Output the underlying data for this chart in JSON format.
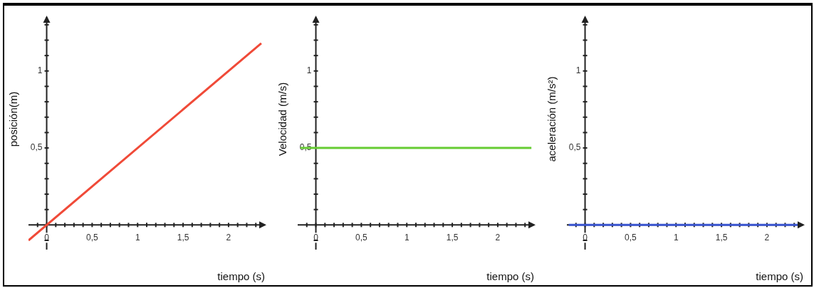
{
  "chart_data": [
    {
      "type": "line",
      "xlabel": "tiempo (s)",
      "ylabel": "posición(m)",
      "xlim": [
        -0.2,
        2.4
      ],
      "ylim": [
        -0.16,
        1.35
      ],
      "xticks": [
        {
          "value": -0.1,
          "label": null
        },
        0,
        {
          "value": 0.1,
          "label": null
        },
        {
          "value": 0.2,
          "label": null
        },
        {
          "value": 0.3,
          "label": null
        },
        {
          "value": 0.4,
          "label": null
        },
        {
          "value": 0.5,
          "label": "0,5"
        },
        {
          "value": 0.6,
          "label": null
        },
        {
          "value": 0.7,
          "label": null
        },
        {
          "value": 0.8,
          "label": null
        },
        {
          "value": 0.9,
          "label": null
        },
        1,
        {
          "value": 1.1,
          "label": null
        },
        {
          "value": 1.2,
          "label": null
        },
        {
          "value": 1.3,
          "label": null
        },
        {
          "value": 1.4,
          "label": null
        },
        {
          "value": 1.5,
          "label": "1,5"
        },
        {
          "value": 1.6,
          "label": null
        },
        {
          "value": 1.7,
          "label": null
        },
        {
          "value": 1.8,
          "label": null
        },
        {
          "value": 1.9,
          "label": null
        },
        2,
        {
          "value": 2.1,
          "label": null
        },
        {
          "value": 2.2,
          "label": null
        },
        {
          "value": 2.3,
          "label": null
        }
      ],
      "yticks": [
        {
          "value": -0.1,
          "label": null
        },
        {
          "value": 0.1,
          "label": null
        },
        {
          "value": 0.2,
          "label": null
        },
        {
          "value": 0.3,
          "label": null
        },
        {
          "value": 0.4,
          "label": null
        },
        {
          "value": 0.5,
          "label": "0,5"
        },
        {
          "value": 0.6,
          "label": null
        },
        {
          "value": 0.7,
          "label": null
        },
        {
          "value": 0.8,
          "label": null
        },
        {
          "value": 0.9,
          "label": null
        },
        {
          "value": 1,
          "label": "1"
        },
        {
          "value": 1.1,
          "label": null
        },
        {
          "value": 1.2,
          "label": null
        },
        {
          "value": 1.3,
          "label": null
        }
      ],
      "marker": "none",
      "x": [
        -0.2,
        2.36
      ],
      "series": [
        {
          "color": "#f04a38",
          "values": [
            -0.1,
            1.18
          ]
        }
      ]
    },
    {
      "type": "line",
      "xlabel": "tiempo (s)",
      "ylabel": "Velocidad (m/s)",
      "xlim": [
        -0.2,
        2.4
      ],
      "ylim": [
        -0.16,
        1.35
      ],
      "xticks": [
        {
          "value": -0.1,
          "label": null
        },
        0,
        {
          "value": 0.1,
          "label": null
        },
        {
          "value": 0.2,
          "label": null
        },
        {
          "value": 0.3,
          "label": null
        },
        {
          "value": 0.4,
          "label": null
        },
        {
          "value": 0.5,
          "label": "0,5"
        },
        {
          "value": 0.6,
          "label": null
        },
        {
          "value": 0.7,
          "label": null
        },
        {
          "value": 0.8,
          "label": null
        },
        {
          "value": 0.9,
          "label": null
        },
        1,
        {
          "value": 1.1,
          "label": null
        },
        {
          "value": 1.2,
          "label": null
        },
        {
          "value": 1.3,
          "label": null
        },
        {
          "value": 1.4,
          "label": null
        },
        {
          "value": 1.5,
          "label": "1,5"
        },
        {
          "value": 1.6,
          "label": null
        },
        {
          "value": 1.7,
          "label": null
        },
        {
          "value": 1.8,
          "label": null
        },
        {
          "value": 1.9,
          "label": null
        },
        2,
        {
          "value": 2.1,
          "label": null
        },
        {
          "value": 2.2,
          "label": null
        },
        {
          "value": 2.3,
          "label": null
        }
      ],
      "yticks": [
        {
          "value": -0.1,
          "label": null
        },
        {
          "value": 0.1,
          "label": null
        },
        {
          "value": 0.2,
          "label": null
        },
        {
          "value": 0.3,
          "label": null
        },
        {
          "value": 0.4,
          "label": null
        },
        {
          "value": 0.5,
          "label": "0,5"
        },
        {
          "value": 0.6,
          "label": null
        },
        {
          "value": 0.7,
          "label": null
        },
        {
          "value": 0.8,
          "label": null
        },
        {
          "value": 0.9,
          "label": null
        },
        {
          "value": 1,
          "label": "1"
        },
        {
          "value": 1.1,
          "label": null
        },
        {
          "value": 1.2,
          "label": null
        },
        {
          "value": 1.3,
          "label": null
        }
      ],
      "marker": "none",
      "x": [
        -0.17,
        2.37
      ],
      "series": [
        {
          "color": "#66cc33",
          "values": [
            0.5,
            0.5
          ]
        }
      ]
    },
    {
      "type": "line",
      "xlabel": "tiempo (s)",
      "ylabel": "aceleración (m/s²)",
      "xlim": [
        -0.2,
        2.4
      ],
      "ylim": [
        -0.16,
        1.35
      ],
      "xticks": [
        {
          "value": -0.1,
          "label": null
        },
        0,
        {
          "value": 0.1,
          "label": null
        },
        {
          "value": 0.2,
          "label": null
        },
        {
          "value": 0.3,
          "label": null
        },
        {
          "value": 0.4,
          "label": null
        },
        {
          "value": 0.5,
          "label": "0,5"
        },
        {
          "value": 0.6,
          "label": null
        },
        {
          "value": 0.7,
          "label": null
        },
        {
          "value": 0.8,
          "label": null
        },
        {
          "value": 0.9,
          "label": null
        },
        1,
        {
          "value": 1.1,
          "label": null
        },
        {
          "value": 1.2,
          "label": null
        },
        {
          "value": 1.3,
          "label": null
        },
        {
          "value": 1.4,
          "label": null
        },
        {
          "value": 1.5,
          "label": "1,5"
        },
        {
          "value": 1.6,
          "label": null
        },
        {
          "value": 1.7,
          "label": null
        },
        {
          "value": 1.8,
          "label": null
        },
        {
          "value": 1.9,
          "label": null
        },
        2,
        {
          "value": 2.1,
          "label": null
        },
        {
          "value": 2.2,
          "label": null
        },
        {
          "value": 2.3,
          "label": null
        }
      ],
      "yticks": [
        {
          "value": -0.1,
          "label": null
        },
        {
          "value": 0.1,
          "label": null
        },
        {
          "value": 0.2,
          "label": null
        },
        {
          "value": 0.3,
          "label": null
        },
        {
          "value": 0.4,
          "label": null
        },
        {
          "value": 0.5,
          "label": "0,5"
        },
        {
          "value": 0.6,
          "label": null
        },
        {
          "value": 0.7,
          "label": null
        },
        {
          "value": 0.8,
          "label": null
        },
        {
          "value": 0.9,
          "label": null
        },
        {
          "value": 1,
          "label": "1"
        },
        {
          "value": 1.1,
          "label": null
        },
        {
          "value": 1.2,
          "label": null
        },
        {
          "value": 1.3,
          "label": null
        }
      ],
      "marker": "none",
      "x": [
        -0.18,
        2.34
      ],
      "series": [
        {
          "color": "#3a55d0",
          "values": [
            0,
            0
          ]
        }
      ]
    }
  ]
}
